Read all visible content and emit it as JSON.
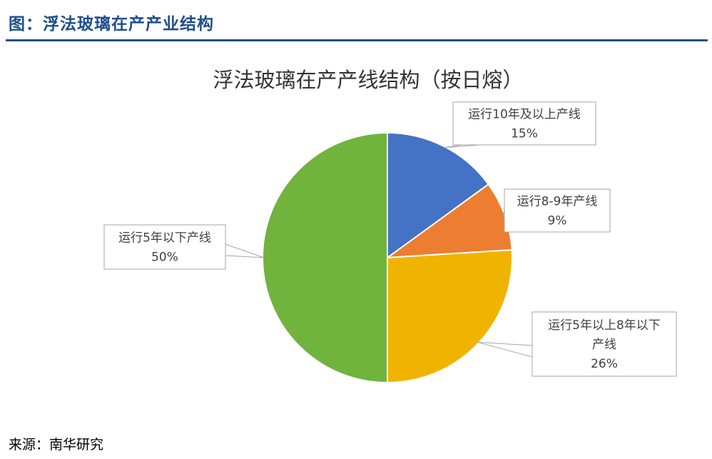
{
  "header": {
    "title": "图：浮法玻璃在产产业结构"
  },
  "source": "来源：南华研究",
  "colors": {
    "header": "#1f4e8c",
    "blue": "#4472c4",
    "orange": "#ed7d31",
    "yellow": "#f0b400",
    "green": "#70b33d"
  },
  "chart_data": {
    "type": "pie",
    "title": "浮法玻璃在产产线结构（按日熔）",
    "slices": [
      {
        "label": "运行10年及以上产线",
        "value": 15,
        "display": "15%",
        "color": "#4472c4"
      },
      {
        "label": "运行8-9年产线",
        "value": 9,
        "display": "9%",
        "color": "#ed7d31"
      },
      {
        "label": "运行5年以上8年以下产线",
        "value": 26,
        "display": "26%",
        "color": "#f0b400"
      },
      {
        "label": "运行5年以下产线",
        "value": 50,
        "display": "50%",
        "color": "#70b33d"
      }
    ],
    "start_angle": "12 o'clock",
    "direction": "clockwise",
    "data_labels": "callouts"
  }
}
